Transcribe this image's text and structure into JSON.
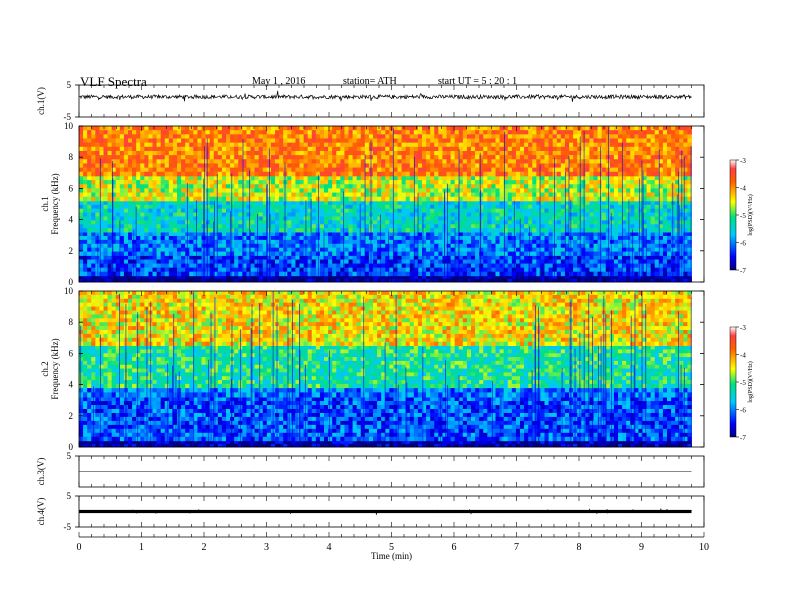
{
  "header": {
    "title": "VLF  Spectra",
    "date": "May 1  , 2016",
    "station": "station= ATH",
    "start": "start  UT  =   5  : 20 : 1"
  },
  "chart_data": [
    {
      "type": "line",
      "panel": "ch1",
      "ylabel": "ch.1(V)",
      "ylim": [
        -5,
        5
      ],
      "yticks": [
        "5",
        "-5"
      ],
      "x_range": [
        0,
        9.8
      ],
      "description_values": {
        "baseline_V": 1.3,
        "noise_amplitude_V": 0.6
      }
    },
    {
      "type": "heatmap",
      "panel": "ch1",
      "ylabel_channel": "ch.1",
      "ylabel": "Frequency  (kHz)",
      "ylim": [
        0,
        10
      ],
      "yticks": [
        "0",
        "2",
        "4",
        "6",
        "8",
        "10"
      ],
      "x_range": [
        0,
        9.8
      ],
      "colorbar": {
        "label": "log(PSD)(V²/Hz)",
        "range": [
          -7,
          -3
        ],
        "ticks": [
          "-3",
          "-4",
          "-5",
          "-6",
          "-7"
        ]
      },
      "bands": [
        {
          "f_low": 0.0,
          "f_high": 0.4,
          "level": -7.0
        },
        {
          "f_low": 0.4,
          "f_high": 1.7,
          "level": -6.3
        },
        {
          "f_low": 1.7,
          "f_high": 3.2,
          "level": -6.0
        },
        {
          "f_low": 3.2,
          "f_high": 5.2,
          "level": -5.4
        },
        {
          "f_low": 5.2,
          "f_high": 6.8,
          "level": -4.6
        },
        {
          "f_low": 6.8,
          "f_high": 10.0,
          "level": -3.9
        }
      ]
    },
    {
      "type": "heatmap",
      "panel": "ch2",
      "ylabel_channel": "ch.2",
      "ylabel": "Frequency  (kHz)",
      "ylim": [
        0,
        10
      ],
      "yticks": [
        "0",
        "2",
        "4",
        "6",
        "8",
        "10"
      ],
      "x_range": [
        0,
        9.8
      ],
      "colorbar": {
        "label": "log(PSD)(V²/Hz)",
        "range": [
          -7,
          -3
        ],
        "ticks": [
          "-3",
          "-4",
          "-5",
          "-6",
          "-7"
        ]
      },
      "bands": [
        {
          "f_low": 0.0,
          "f_high": 0.4,
          "level": -6.9
        },
        {
          "f_low": 0.4,
          "f_high": 3.2,
          "level": -6.2
        },
        {
          "f_low": 3.2,
          "f_high": 3.8,
          "level": -6.0
        },
        {
          "f_low": 3.8,
          "f_high": 6.5,
          "level": -5.2
        },
        {
          "f_low": 6.5,
          "f_high": 10.0,
          "level": -4.4
        }
      ]
    },
    {
      "type": "line",
      "panel": "ch3",
      "ylabel": "ch.3(V)",
      "ylim": [
        -5,
        5
      ],
      "yticks": [
        "5"
      ],
      "x_range": [
        0,
        9.8
      ],
      "description_values": {
        "baseline_V": 0.0,
        "noise_amplitude_V": 0.05
      }
    },
    {
      "type": "line",
      "panel": "ch4",
      "ylabel": "ch.4(V)",
      "ylim": [
        -5,
        5
      ],
      "yticks": [
        "5",
        "-5"
      ],
      "x_range": [
        0,
        9.8
      ],
      "description_values": {
        "baseline_V": 0.0,
        "noise_amplitude_V": 0.3
      }
    }
  ],
  "x_axis": {
    "label": "Time  (min)",
    "ticks": [
      "0",
      "1",
      "2",
      "3",
      "4",
      "5",
      "6",
      "7",
      "8",
      "9",
      "10"
    ],
    "xlim": [
      0,
      10
    ]
  }
}
